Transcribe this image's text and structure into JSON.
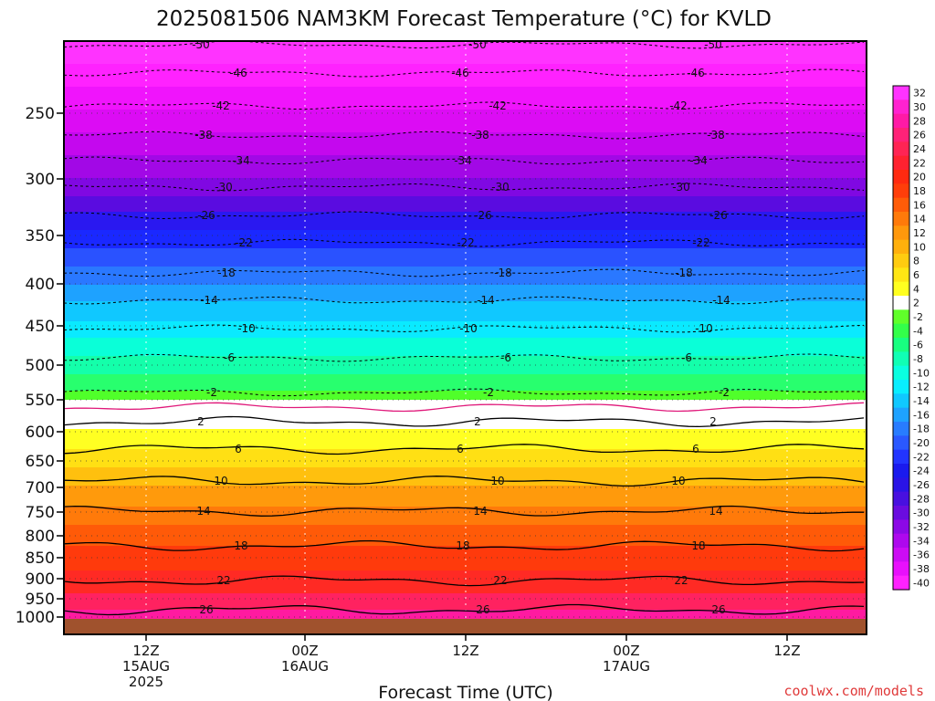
{
  "chart_data": {
    "type": "heatmap",
    "title": "2025081506 NAM3KM Forecast Temperature (°C) for KVLD",
    "xlabel": "Forecast Time (UTC)",
    "ylabel": "",
    "y_ticks": [
      "250",
      "300",
      "350",
      "400",
      "450",
      "500",
      "550",
      "600",
      "650",
      "700",
      "750",
      "800",
      "850",
      "900",
      "950",
      "1000"
    ],
    "x_ticks": [
      {
        "lines": [
          "12Z",
          "15AUG",
          "2025"
        ]
      },
      {
        "lines": [
          "00Z",
          "16AUG"
        ]
      },
      {
        "lines": [
          "12Z"
        ]
      },
      {
        "lines": [
          "00Z",
          "17AUG"
        ]
      },
      {
        "lines": [
          "12Z"
        ]
      }
    ],
    "colorbar": {
      "labels": [
        "32",
        "30",
        "28",
        "26",
        "24",
        "22",
        "20",
        "18",
        "16",
        "14",
        "12",
        "10",
        "8",
        "6",
        "4",
        "2",
        "-2",
        "-4",
        "-6",
        "-8",
        "-10",
        "-12",
        "-14",
        "-16",
        "-18",
        "-20",
        "-22",
        "-24",
        "-26",
        "-28",
        "-30",
        "-32",
        "-34",
        "-36",
        "-38",
        "-40"
      ],
      "colors": [
        "#ff33ff",
        "#ff22d0",
        "#ff1aa6",
        "#ff2278",
        "#ff2454",
        "#ff2230",
        "#ff2a10",
        "#ff3e0a",
        "#ff5c08",
        "#ff7a0a",
        "#ff980c",
        "#ffb00c",
        "#ffcc10",
        "#ffe614",
        "#ffff20",
        "#ffffff",
        "#60ff2a",
        "#33ff4a",
        "#18ff80",
        "#10ffb4",
        "#0affe0",
        "#08eeff",
        "#10c8ff",
        "#1ea2ff",
        "#287cff",
        "#2a58ff",
        "#2234ff",
        "#1a1aee",
        "#2a14e6",
        "#4810e0",
        "#6a0ce0",
        "#8c08e6",
        "#ae08ee",
        "#cc0cf4",
        "#e810fc",
        "#ff22ff"
      ]
    },
    "contour_labels_dashed": [
      "-50",
      "-46",
      "-42",
      "-38",
      "-34",
      "-30",
      "-26",
      "-22",
      "-18",
      "-14",
      "-10",
      "-6",
      "-2"
    ],
    "contour_labels_solid": [
      "2",
      "6",
      "10",
      "14",
      "18",
      "22",
      "26"
    ],
    "credit": "coolwx.com/models"
  }
}
